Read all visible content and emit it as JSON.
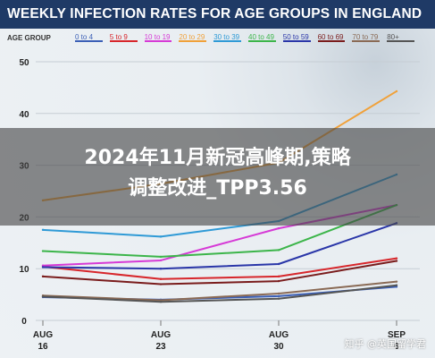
{
  "title": "WEEKLY INFECTION RATES FOR AGE GROUPS IN ENGLAND",
  "legend_label": "AGE GROUP",
  "colors": {
    "title_bar": "#1f3a66",
    "overlay": "rgba(70,70,70,0.62)"
  },
  "chart_data": {
    "type": "line",
    "x_ticks": [
      [
        "AUG",
        "16"
      ],
      [
        "AUG",
        "23"
      ],
      [
        "AUG",
        "30"
      ],
      [
        "SEP",
        "6"
      ]
    ],
    "x": [
      "AUG 16",
      "AUG 23",
      "AUG 30",
      "SEP 6"
    ],
    "ylim": [
      0,
      50
    ],
    "yticks": [
      0,
      10,
      20,
      30,
      40,
      50
    ],
    "grid": true,
    "legend_position": "top",
    "series": [
      {
        "name": "0 to 4",
        "color": "#3b5fb6",
        "values": [
          4.5,
          4.0,
          4.7,
          6.5
        ]
      },
      {
        "name": "5 to 9",
        "color": "#d7262b",
        "values": [
          10.4,
          8.0,
          8.5,
          12.0
        ]
      },
      {
        "name": "10 to 19",
        "color": "#d63ad6",
        "values": [
          10.6,
          11.6,
          17.8,
          22.3
        ]
      },
      {
        "name": "20 to 29",
        "color": "#f0a13a",
        "values": [
          23.2,
          26.4,
          30.5,
          44.3
        ]
      },
      {
        "name": "30 to 39",
        "color": "#2f9ad6",
        "values": [
          17.5,
          16.2,
          19.2,
          28.2
        ]
      },
      {
        "name": "40 to 49",
        "color": "#3cb54a",
        "values": [
          13.4,
          12.3,
          13.6,
          22.3
        ]
      },
      {
        "name": "50 to 59",
        "color": "#2a36a8",
        "values": [
          10.3,
          10.0,
          10.9,
          18.8
        ]
      },
      {
        "name": "60 to 69",
        "color": "#7a1c1c",
        "values": [
          8.5,
          7.0,
          7.6,
          11.5
        ]
      },
      {
        "name": "70 to 79",
        "color": "#8a6a55",
        "values": [
          4.8,
          3.9,
          5.2,
          7.5
        ]
      },
      {
        "name": "80+",
        "color": "#555555",
        "values": [
          4.6,
          3.6,
          4.2,
          6.8
        ]
      }
    ]
  },
  "overlay_text_line1": "2024年11月新冠高峰期,策略",
  "overlay_text_line2": "调整改进_TPP3.56",
  "watermark": "知乎 @英国留学君"
}
